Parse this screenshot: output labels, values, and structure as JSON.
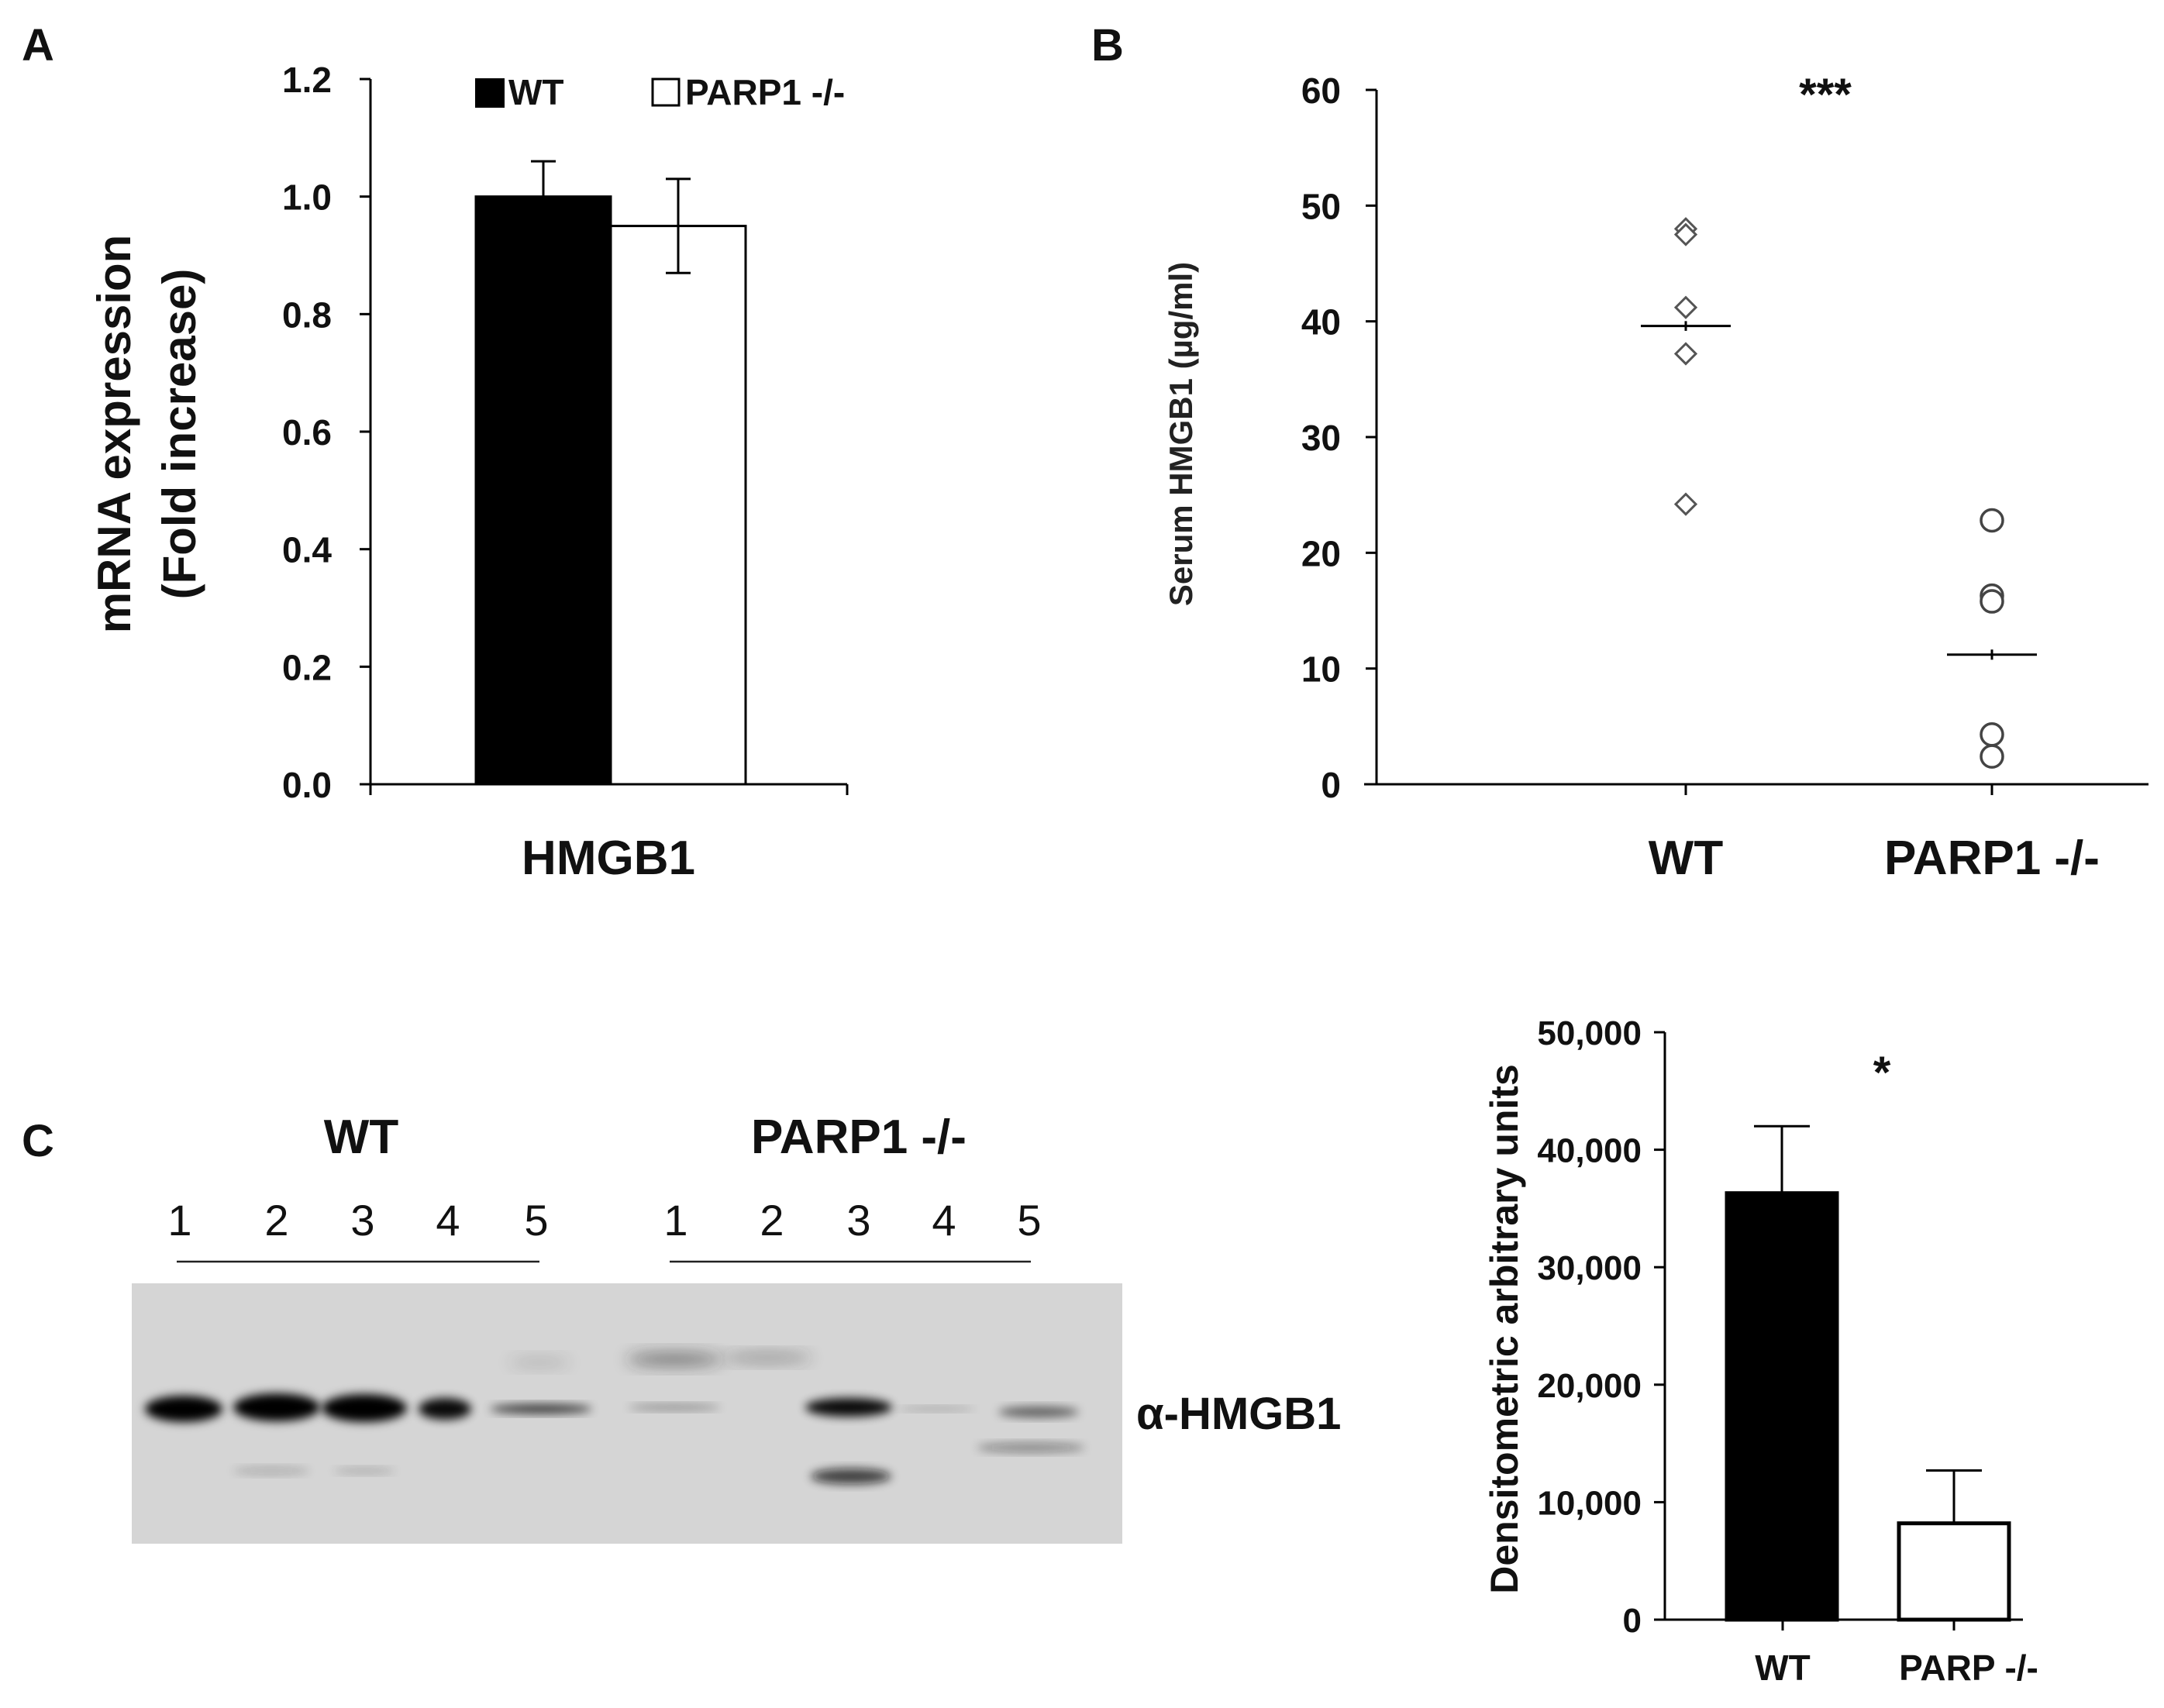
{
  "panels": {
    "a_label": "A",
    "b_label": "B",
    "c_label": "C"
  },
  "chart_data": [
    {
      "panel": "A",
      "type": "bar",
      "categories": [
        "HMGB1"
      ],
      "xlabel": "HMGB1",
      "ylabel": "mRNA expression (Fold increase)",
      "ylabel_lines": [
        "mRNA expression",
        "(Fold increase)"
      ],
      "ylim": [
        0,
        1.2
      ],
      "yticks": [
        "0.0",
        "0.2",
        "0.4",
        "0.6",
        "0.8",
        "1.0",
        "1.2"
      ],
      "series": [
        {
          "name": "WT",
          "values": [
            1.0
          ],
          "error": [
            0.06
          ],
          "fill": "#000000"
        },
        {
          "name": "PARP1 -/-",
          "values": [
            0.95
          ],
          "error": [
            0.08
          ],
          "fill": "#ffffff"
        }
      ],
      "legend": [
        "WT",
        "PARP1 -/-"
      ],
      "legend_position": "top",
      "grid": false
    },
    {
      "panel": "B",
      "type": "scatter",
      "ylabel": "Serum HMGB1 (µg/ml)",
      "ylim": [
        0,
        60
      ],
      "yticks": [
        "0",
        "10",
        "20",
        "30",
        "40",
        "50",
        "60"
      ],
      "categories": [
        "WT",
        "PARP1 -/-"
      ],
      "series": [
        {
          "group": "WT",
          "marker": "diamond",
          "values": [
            48,
            47.5,
            41.2,
            37.2,
            24.2
          ],
          "mean": 39.6,
          "sem": 4.2
        },
        {
          "group": "PARP1 -/-",
          "marker": "circle",
          "values": [
            22.8,
            16.3,
            15.8,
            4.3,
            2.4
          ],
          "mean": 11.2,
          "sem": 4.4
        }
      ],
      "annotation": "***",
      "grid": false
    },
    {
      "panel": "C-quant",
      "type": "bar",
      "categories": [
        "WT",
        "PARP -/-"
      ],
      "ylabel": "Densitometric arbitrary units",
      "ylim": [
        0,
        50000
      ],
      "yticks": [
        "0",
        "10,000",
        "20,000",
        "30,000",
        "40,000",
        "50,000"
      ],
      "values": [
        36300,
        8200
      ],
      "errors": [
        5700,
        4500
      ],
      "fills": [
        "#000000",
        "#ffffff"
      ],
      "annotation": "*",
      "grid": false
    }
  ],
  "blot": {
    "group_wt": "WT",
    "group_ko": "PARP1 -/-",
    "lanes_wt": [
      "1",
      "2",
      "3",
      "4",
      "5"
    ],
    "lanes_ko": [
      "1",
      "2",
      "3",
      "4",
      "5"
    ],
    "antibody_label": "α-HMGB1"
  }
}
